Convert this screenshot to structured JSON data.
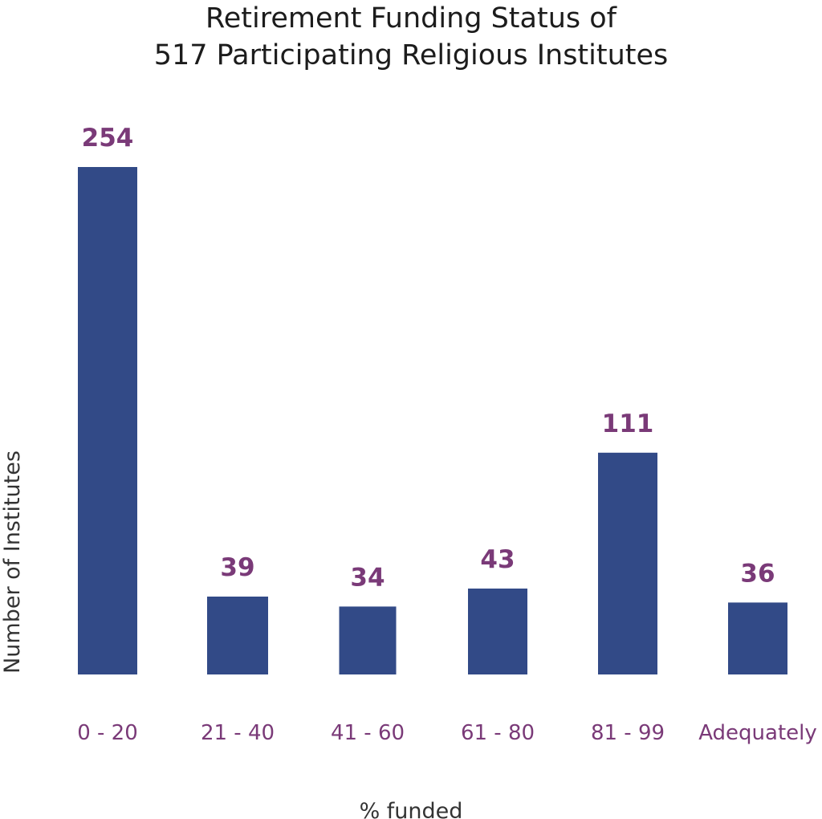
{
  "chart_data": {
    "type": "bar",
    "title_lines": [
      "Retirement Funding Status of",
      "517 Participating Religious Institutes"
    ],
    "xlabel": "% funded",
    "ylabel": "Number of Institutes",
    "categories": [
      "0 - 20",
      "21 - 40",
      "41 - 60",
      "61 - 80",
      "81 - 99",
      "Adequately"
    ],
    "values": [
      254,
      39,
      34,
      43,
      111,
      36
    ],
    "ylim": [
      0,
      254
    ],
    "grid": false,
    "legend": "none",
    "bar_color": "#324a87",
    "label_color": "#7a3a78",
    "title_color": "#1c1c1c",
    "axis_title_color": "#333333"
  }
}
